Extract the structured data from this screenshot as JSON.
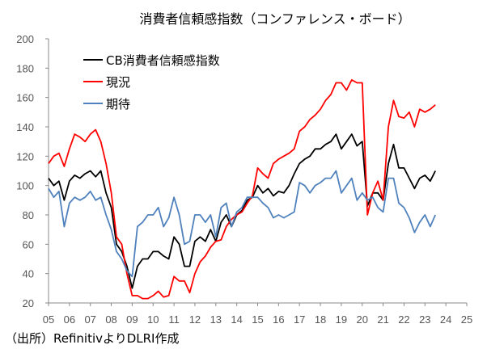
{
  "chart_data": {
    "type": "line",
    "title": "消費者信頼感指数（コンファレンス・ボード）",
    "xlabel": "",
    "ylabel": "",
    "ylim": [
      20,
      200
    ],
    "xlim": [
      2005,
      2025
    ],
    "yticks": [
      "20",
      "40",
      "60",
      "80",
      "100",
      "120",
      "140",
      "160",
      "180",
      "200"
    ],
    "xticks": [
      "05",
      "06",
      "07",
      "08",
      "09",
      "10",
      "11",
      "12",
      "13",
      "14",
      "15",
      "16",
      "17",
      "18",
      "19",
      "20",
      "21",
      "22",
      "23",
      "24",
      "25"
    ],
    "legend_position": "top-left",
    "grid": false,
    "x": [
      2005,
      2005.25,
      2005.5,
      2005.75,
      2006,
      2006.25,
      2006.5,
      2006.75,
      2007,
      2007.25,
      2007.5,
      2007.75,
      2008,
      2008.25,
      2008.5,
      2008.75,
      2009,
      2009.25,
      2009.5,
      2009.75,
      2010,
      2010.25,
      2010.5,
      2010.75,
      2011,
      2011.25,
      2011.5,
      2011.75,
      2012,
      2012.25,
      2012.5,
      2012.75,
      2013,
      2013.25,
      2013.5,
      2013.75,
      2014,
      2014.25,
      2014.5,
      2014.75,
      2015,
      2015.25,
      2015.5,
      2015.75,
      2016,
      2016.25,
      2016.5,
      2016.75,
      2017,
      2017.25,
      2017.5,
      2017.75,
      2018,
      2018.25,
      2018.5,
      2018.75,
      2019,
      2019.25,
      2019.5,
      2019.75,
      2020,
      2020.25,
      2020.5,
      2020.75,
      2021,
      2021.25,
      2021.5,
      2021.75,
      2022,
      2022.25,
      2022.5,
      2022.75,
      2023,
      2023.25,
      2023.5
    ],
    "series": [
      {
        "name": "CB消費者信頼感指数",
        "color": "#000000",
        "values": [
          105,
          100,
          103,
          90,
          103,
          107,
          105,
          108,
          110,
          106,
          110,
          95,
          85,
          60,
          55,
          45,
          30,
          45,
          50,
          50,
          55,
          55,
          52,
          50,
          65,
          60,
          45,
          45,
          62,
          65,
          62,
          70,
          62,
          75,
          80,
          72,
          80,
          83,
          90,
          92,
          100,
          95,
          98,
          93,
          96,
          95,
          100,
          108,
          115,
          118,
          120,
          125,
          125,
          128,
          130,
          135,
          125,
          130,
          135,
          127,
          130,
          86,
          95,
          95,
          90,
          115,
          128,
          112,
          112,
          105,
          98,
          105,
          107,
          103,
          110
        ]
      },
      {
        "name": "現況",
        "color": "#ff0000",
        "values": [
          115,
          120,
          122,
          113,
          125,
          135,
          133,
          130,
          135,
          138,
          130,
          115,
          95,
          65,
          60,
          40,
          25,
          25,
          23,
          23,
          25,
          28,
          24,
          25,
          38,
          35,
          35,
          27,
          40,
          48,
          52,
          58,
          62,
          63,
          72,
          77,
          80,
          82,
          88,
          93,
          112,
          108,
          105,
          115,
          118,
          120,
          122,
          125,
          137,
          140,
          145,
          148,
          152,
          158,
          162,
          170,
          170,
          165,
          172,
          170,
          170,
          80,
          95,
          103,
          90,
          140,
          158,
          147,
          146,
          150,
          140,
          152,
          150,
          152,
          155
        ]
      },
      {
        "name": "期待",
        "color": "#4f81bd",
        "values": [
          98,
          92,
          96,
          72,
          88,
          92,
          90,
          92,
          96,
          90,
          92,
          80,
          70,
          55,
          50,
          42,
          38,
          72,
          75,
          80,
          80,
          85,
          72,
          78,
          92,
          80,
          60,
          62,
          80,
          80,
          75,
          80,
          65,
          85,
          88,
          72,
          82,
          85,
          92,
          92,
          92,
          88,
          85,
          78,
          80,
          78,
          80,
          82,
          102,
          100,
          95,
          100,
          102,
          105,
          105,
          110,
          95,
          100,
          105,
          90,
          95,
          90,
          92,
          85,
          82,
          105,
          105,
          88,
          85,
          78,
          68,
          75,
          80,
          72,
          80
        ]
      }
    ]
  },
  "source": "（出所）RefinitivよりDLRI作成"
}
